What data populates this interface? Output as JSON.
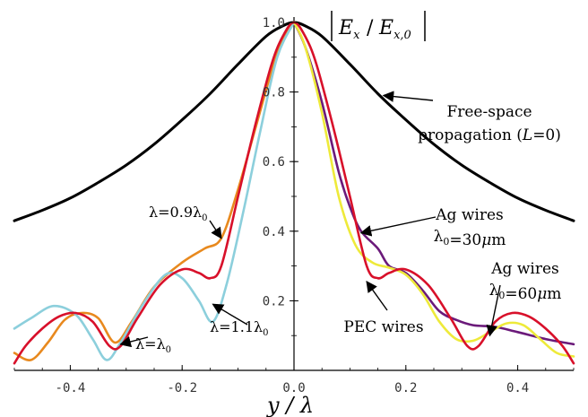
{
  "chart_data": {
    "type": "line",
    "xlabel": "y / λ",
    "ylabel": "|E_x / E_x,0|",
    "xlim": [
      -0.5,
      0.5
    ],
    "ylim": [
      0.0,
      1.0
    ],
    "x_ticks": [
      -0.4,
      -0.2,
      0.0,
      0.2,
      0.4
    ],
    "x_tick_labels": [
      "-0.4",
      "-0.2",
      "0.0",
      "0.2",
      "0.4"
    ],
    "y_ticks": [
      0.2,
      0.4,
      0.6,
      0.8,
      1.0
    ],
    "y_tick_labels": [
      "0.2",
      "0.4",
      "0.6",
      "0.8",
      "1.0"
    ],
    "grid": false,
    "colors": {
      "free_space": "#000000",
      "lambda_09": "#e8891e",
      "lambda_11": "#8ccfdc",
      "lambda_1": "#d8102a",
      "ag_30": "#6b1a7a",
      "ag_60": "#eeea3a"
    },
    "series": [
      {
        "name": "",
        "color_key": "free_space",
        "points": [
          [
            -0.5,
            0.43
          ],
          [
            -0.45,
            0.46
          ],
          [
            -0.4,
            0.495
          ],
          [
            -0.35,
            0.54
          ],
          [
            -0.3,
            0.59
          ],
          [
            -0.25,
            0.65
          ],
          [
            -0.2,
            0.72
          ],
          [
            -0.15,
            0.795
          ],
          [
            -0.1,
            0.88
          ],
          [
            -0.05,
            0.96
          ],
          [
            -0.02,
            0.99
          ],
          [
            0.0,
            1.0
          ],
          [
            0.02,
            0.99
          ],
          [
            0.05,
            0.96
          ],
          [
            0.1,
            0.88
          ],
          [
            0.15,
            0.795
          ],
          [
            0.2,
            0.72
          ],
          [
            0.25,
            0.65
          ],
          [
            0.3,
            0.59
          ],
          [
            0.35,
            0.54
          ],
          [
            0.4,
            0.495
          ],
          [
            0.45,
            0.46
          ],
          [
            0.5,
            0.43
          ]
        ]
      },
      {
        "name": "",
        "color_key": "lambda_09",
        "points": [
          [
            -0.5,
            0.05
          ],
          [
            -0.47,
            0.03
          ],
          [
            -0.44,
            0.08
          ],
          [
            -0.41,
            0.145
          ],
          [
            -0.38,
            0.165
          ],
          [
            -0.35,
            0.15
          ],
          [
            -0.32,
            0.08
          ],
          [
            -0.29,
            0.14
          ],
          [
            -0.25,
            0.24
          ],
          [
            -0.2,
            0.31
          ],
          [
            -0.16,
            0.35
          ],
          [
            -0.13,
            0.38
          ],
          [
            -0.1,
            0.52
          ],
          [
            -0.07,
            0.69
          ],
          [
            -0.04,
            0.86
          ],
          [
            -0.02,
            0.95
          ],
          [
            0.0,
            1.0
          ]
        ]
      },
      {
        "name": "",
        "color_key": "lambda_11",
        "points": [
          [
            -0.5,
            0.12
          ],
          [
            -0.47,
            0.15
          ],
          [
            -0.43,
            0.185
          ],
          [
            -0.39,
            0.16
          ],
          [
            -0.36,
            0.09
          ],
          [
            -0.335,
            0.03
          ],
          [
            -0.31,
            0.08
          ],
          [
            -0.27,
            0.19
          ],
          [
            -0.23,
            0.275
          ],
          [
            -0.2,
            0.265
          ],
          [
            -0.17,
            0.2
          ],
          [
            -0.145,
            0.14
          ],
          [
            -0.12,
            0.25
          ],
          [
            -0.09,
            0.46
          ],
          [
            -0.06,
            0.69
          ],
          [
            -0.03,
            0.9
          ],
          [
            0.0,
            1.0
          ]
        ]
      },
      {
        "name": "",
        "color_key": "ag_30",
        "points": [
          [
            0.0,
            1.0
          ],
          [
            0.02,
            0.93
          ],
          [
            0.05,
            0.77
          ],
          [
            0.08,
            0.57
          ],
          [
            0.1,
            0.47
          ],
          [
            0.12,
            0.4
          ],
          [
            0.15,
            0.35
          ],
          [
            0.17,
            0.3
          ],
          [
            0.2,
            0.28
          ],
          [
            0.23,
            0.23
          ],
          [
            0.26,
            0.17
          ],
          [
            0.29,
            0.145
          ],
          [
            0.32,
            0.13
          ],
          [
            0.36,
            0.125
          ],
          [
            0.4,
            0.11
          ],
          [
            0.45,
            0.09
          ],
          [
            0.5,
            0.075
          ]
        ]
      },
      {
        "name": "",
        "color_key": "ag_60",
        "points": [
          [
            0.0,
            1.0
          ],
          [
            0.02,
            0.93
          ],
          [
            0.05,
            0.74
          ],
          [
            0.08,
            0.5
          ],
          [
            0.11,
            0.36
          ],
          [
            0.14,
            0.31
          ],
          [
            0.17,
            0.295
          ],
          [
            0.2,
            0.275
          ],
          [
            0.23,
            0.22
          ],
          [
            0.26,
            0.14
          ],
          [
            0.29,
            0.09
          ],
          [
            0.32,
            0.085
          ],
          [
            0.35,
            0.11
          ],
          [
            0.38,
            0.135
          ],
          [
            0.41,
            0.13
          ],
          [
            0.44,
            0.09
          ],
          [
            0.47,
            0.05
          ],
          [
            0.5,
            0.04
          ]
        ]
      },
      {
        "name": "",
        "color_key": "lambda_1",
        "points": [
          [
            -0.5,
            0.02
          ],
          [
            -0.48,
            0.07
          ],
          [
            -0.45,
            0.12
          ],
          [
            -0.42,
            0.155
          ],
          [
            -0.39,
            0.165
          ],
          [
            -0.36,
            0.14
          ],
          [
            -0.33,
            0.07
          ],
          [
            -0.31,
            0.07
          ],
          [
            -0.28,
            0.15
          ],
          [
            -0.24,
            0.245
          ],
          [
            -0.2,
            0.29
          ],
          [
            -0.17,
            0.28
          ],
          [
            -0.15,
            0.265
          ],
          [
            -0.13,
            0.3
          ],
          [
            -0.1,
            0.5
          ],
          [
            -0.07,
            0.7
          ],
          [
            -0.04,
            0.88
          ],
          [
            -0.02,
            0.96
          ],
          [
            0.0,
            1.0
          ],
          [
            0.02,
            0.96
          ],
          [
            0.04,
            0.88
          ],
          [
            0.07,
            0.7
          ],
          [
            0.1,
            0.5
          ],
          [
            0.13,
            0.3
          ],
          [
            0.15,
            0.265
          ],
          [
            0.17,
            0.28
          ],
          [
            0.2,
            0.29
          ],
          [
            0.24,
            0.245
          ],
          [
            0.28,
            0.15
          ],
          [
            0.31,
            0.07
          ],
          [
            0.33,
            0.07
          ],
          [
            0.36,
            0.14
          ],
          [
            0.39,
            0.165
          ],
          [
            0.42,
            0.155
          ],
          [
            0.45,
            0.12
          ],
          [
            0.48,
            0.07
          ],
          [
            0.5,
            0.02
          ]
        ]
      }
    ],
    "annotations": [
      {
        "id": "free_space",
        "lines": [
          [
            "Free-space"
          ],
          [
            "propagation (",
            "L",
            "=0)"
          ]
        ],
        "arrow_to": [
          0.16,
          0.79
        ]
      },
      {
        "id": "ag_30",
        "lines": [
          [
            "Ag wires"
          ],
          [
            "λ",
            "0",
            "=30",
            "μ",
            "m"
          ]
        ],
        "arrow_to": [
          0.12,
          0.395
        ]
      },
      {
        "id": "pec",
        "lines": [
          [
            "PEC wires"
          ]
        ],
        "arrow_to": [
          0.13,
          0.255
        ]
      },
      {
        "id": "ag_60",
        "lines": [
          [
            "Ag wires"
          ],
          [
            "λ",
            "0",
            "=60",
            "μ",
            "m"
          ]
        ],
        "arrow_to": [
          0.35,
          0.1
        ]
      },
      {
        "id": "lambda_09",
        "lines": [
          [
            "λ=0.9λ",
            "0"
          ]
        ],
        "arrow_to": [
          -0.13,
          0.38
        ]
      },
      {
        "id": "lambda_11",
        "lines": [
          [
            "λ=1.1λ",
            "0"
          ]
        ],
        "arrow_to": [
          -0.145,
          0.19
        ]
      },
      {
        "id": "lambda_1",
        "lines": [
          [
            "λ=λ",
            "0"
          ]
        ],
        "arrow_to": [
          -0.31,
          0.075
        ]
      }
    ]
  }
}
